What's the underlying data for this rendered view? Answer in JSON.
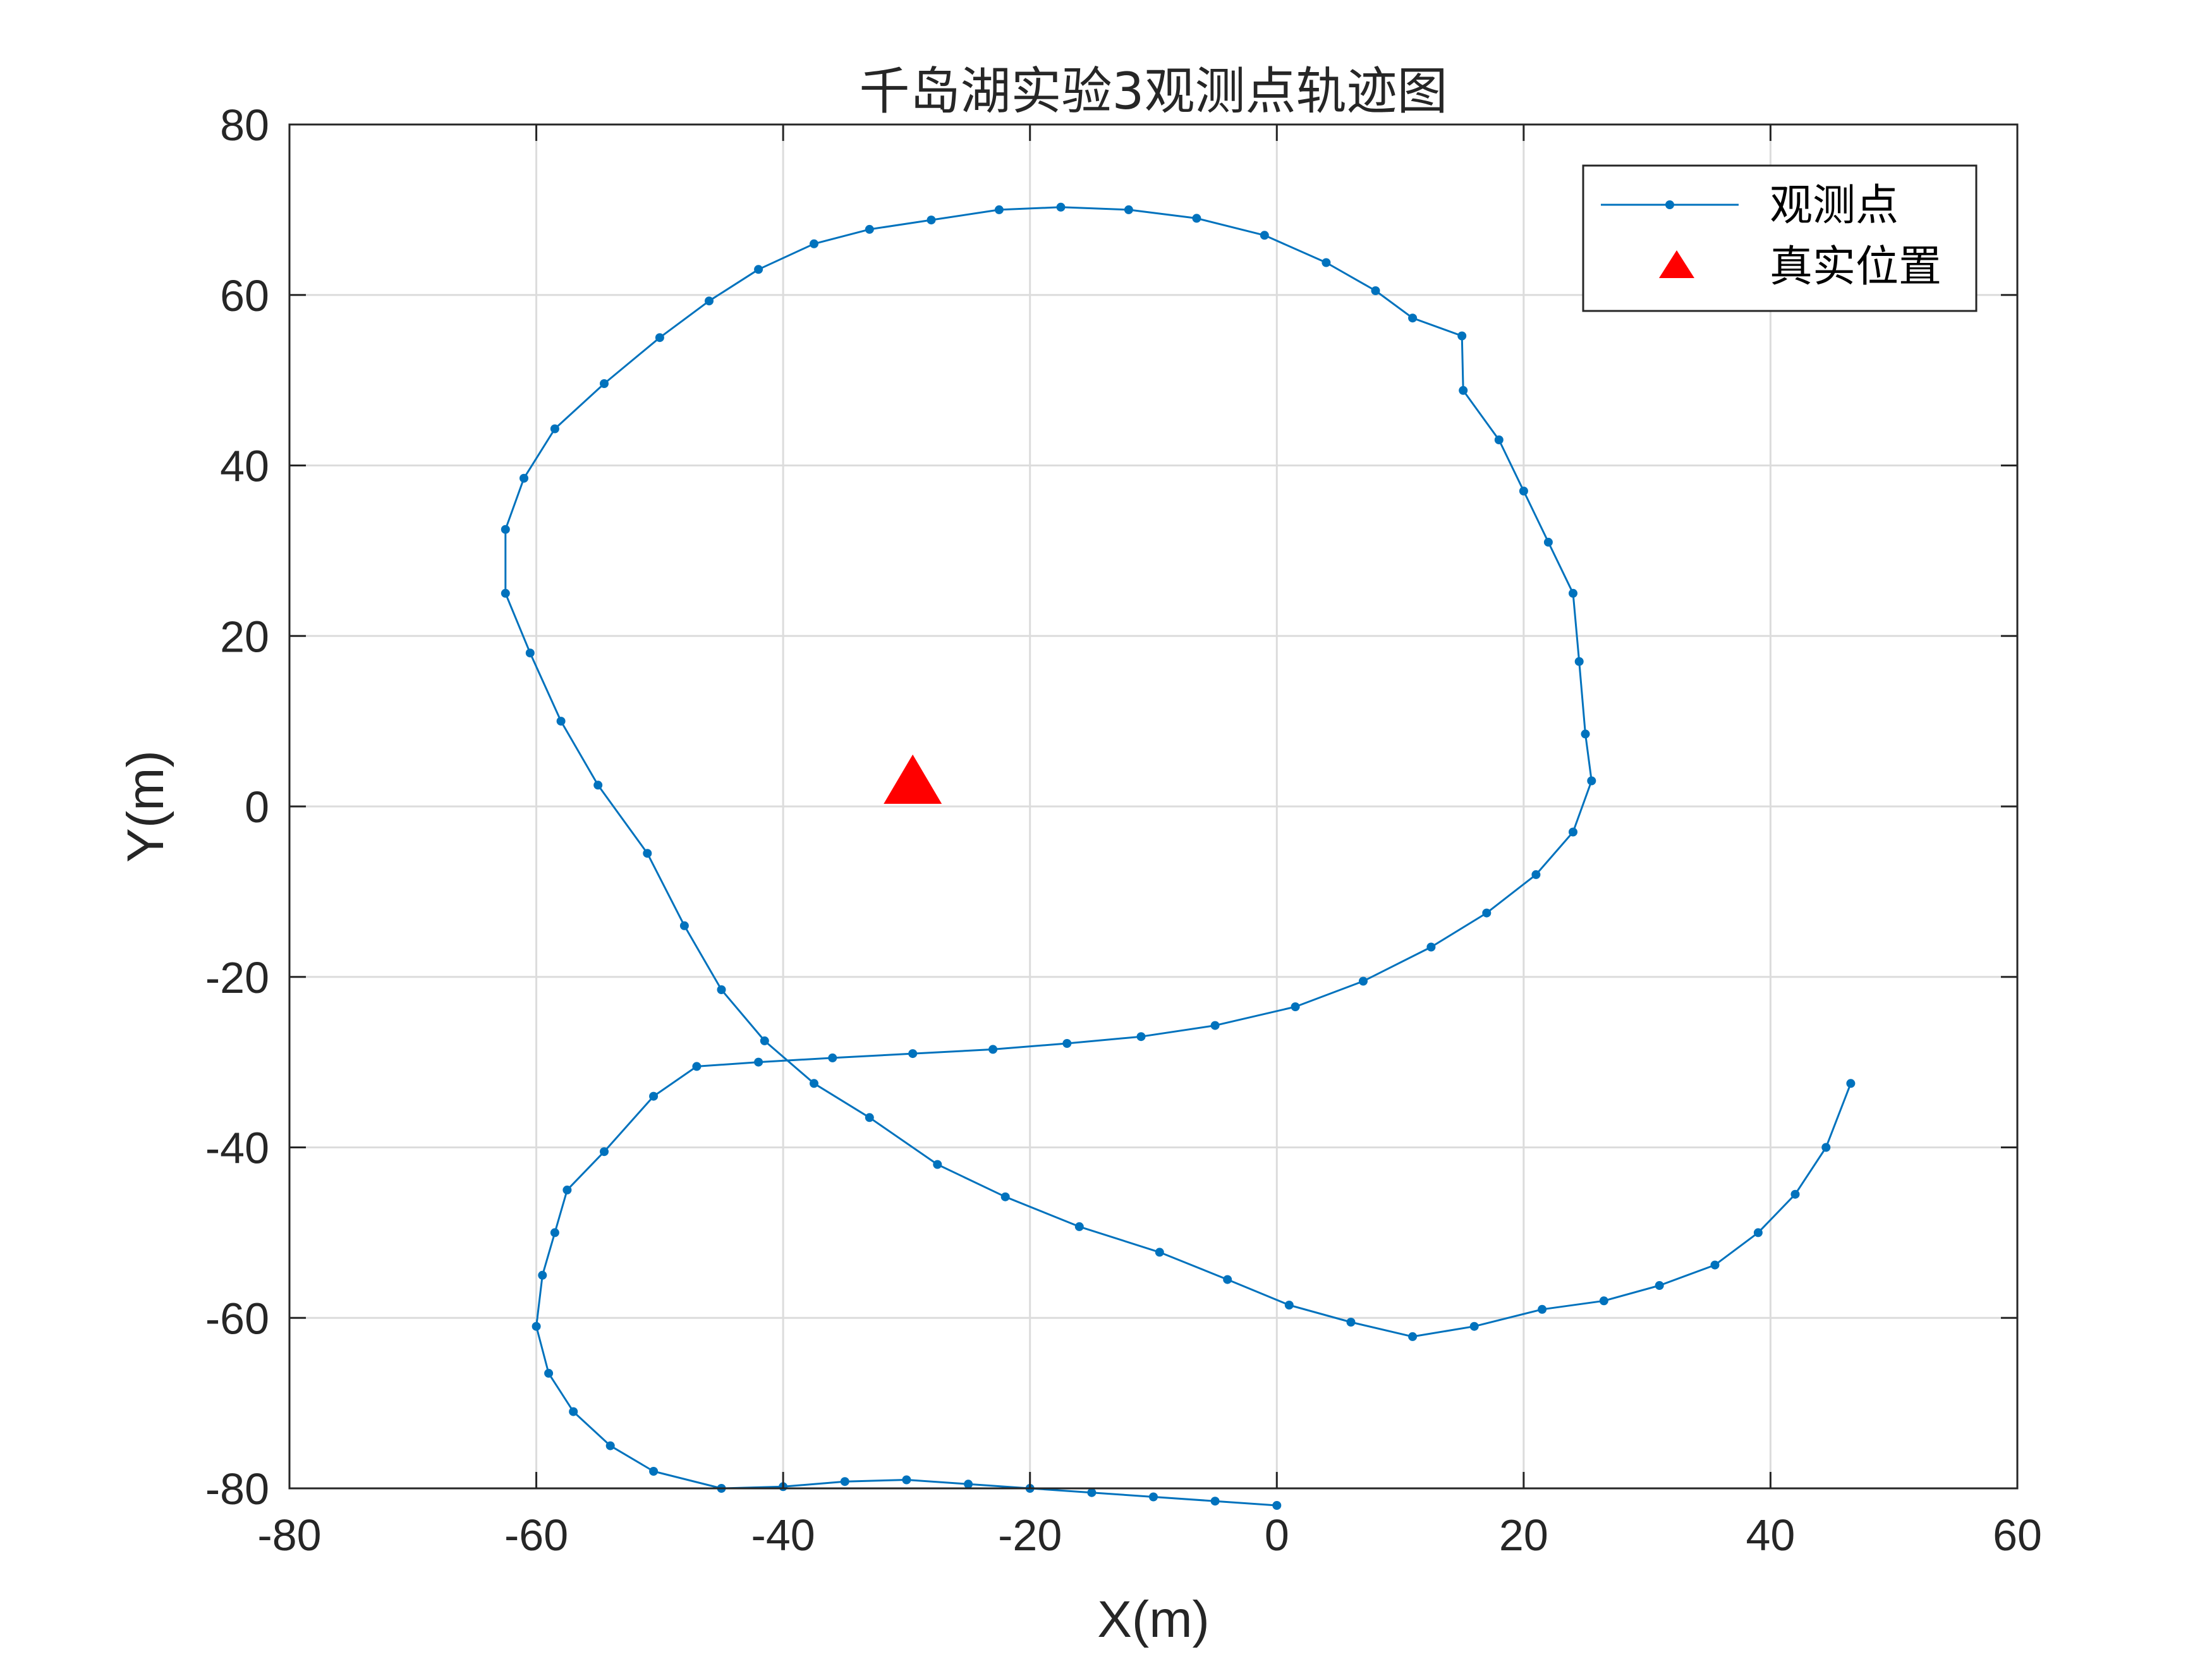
{
  "chart_data": {
    "type": "line",
    "title": "千岛湖实验3观测点轨迹图",
    "xlabel": "X(m)",
    "ylabel": "Y(m)",
    "xlim": [
      -80,
      60
    ],
    "ylim": [
      -80,
      80
    ],
    "xticks": [
      -80,
      -60,
      -40,
      -20,
      0,
      20,
      40,
      60
    ],
    "yticks": [
      -80,
      -60,
      -40,
      -20,
      0,
      20,
      40,
      60,
      80
    ],
    "xtick_labels": [
      "-80",
      "-60",
      "-40",
      "-20",
      "0",
      "20",
      "40",
      "60"
    ],
    "ytick_labels": [
      "-80",
      "-60",
      "-40",
      "-20",
      "0",
      "20",
      "40",
      "60",
      "80"
    ],
    "grid": true,
    "legend_position": "top-right",
    "colors": {
      "series": "#0072BD",
      "marker": "#FF0000",
      "grid": "#dcdcdc",
      "axis": "#262626"
    },
    "series": [
      {
        "name": "观测点",
        "style": "line-with-dots",
        "points": [
          [
            46.5,
            -32.5
          ],
          [
            44.5,
            -40
          ],
          [
            42,
            -45.5
          ],
          [
            39,
            -50
          ],
          [
            35.5,
            -53.8
          ],
          [
            31,
            -56.2
          ],
          [
            26.5,
            -58
          ],
          [
            21.5,
            -59
          ],
          [
            16,
            -61
          ],
          [
            11,
            -62.2
          ],
          [
            6,
            -60.5
          ],
          [
            1,
            -58.5
          ],
          [
            -4,
            -55.5
          ],
          [
            -9.5,
            -52.3
          ],
          [
            -16,
            -49.3
          ],
          [
            -22,
            -45.8
          ],
          [
            -27.5,
            -42
          ],
          [
            -33,
            -36.5
          ],
          [
            -37.5,
            -32.5
          ],
          [
            -41.5,
            -27.5
          ],
          [
            -45,
            -21.5
          ],
          [
            -48,
            -14
          ],
          [
            -51,
            -5.5
          ],
          [
            -55,
            2.5
          ],
          [
            -58,
            10
          ],
          [
            -60.5,
            18
          ],
          [
            -62.5,
            25
          ],
          [
            -62.5,
            32.5
          ],
          [
            -61,
            38.5
          ],
          [
            -58.5,
            44.3
          ],
          [
            -54.5,
            49.6
          ],
          [
            -50,
            55
          ],
          [
            -46,
            59.3
          ],
          [
            -42,
            63
          ],
          [
            -37.5,
            66
          ],
          [
            -33,
            67.7
          ],
          [
            -28,
            68.8
          ],
          [
            -22.5,
            70
          ],
          [
            -17.5,
            70.3
          ],
          [
            -12,
            70
          ],
          [
            -6.5,
            69
          ],
          [
            -1,
            67
          ],
          [
            4,
            63.8
          ],
          [
            8,
            60.5
          ],
          [
            11,
            57.3
          ],
          [
            15,
            55.2
          ],
          [
            15.1,
            48.8
          ],
          [
            18,
            43
          ],
          [
            20,
            37
          ],
          [
            22,
            31
          ],
          [
            24,
            25
          ],
          [
            24.5,
            17
          ],
          [
            25,
            8.5
          ],
          [
            25.5,
            3
          ],
          [
            24,
            -3
          ],
          [
            21,
            -8
          ],
          [
            17,
            -12.5
          ],
          [
            12.5,
            -16.5
          ],
          [
            7,
            -20.5
          ],
          [
            1.5,
            -23.5
          ],
          [
            -5,
            -25.7
          ],
          [
            -11,
            -27
          ],
          [
            -17,
            -27.8
          ],
          [
            -23,
            -28.5
          ],
          [
            -29.5,
            -29
          ],
          [
            -36,
            -29.5
          ],
          [
            -42,
            -30
          ],
          [
            -47,
            -30.5
          ],
          [
            -50.5,
            -34
          ],
          [
            -54.5,
            -40.5
          ],
          [
            -57.5,
            -45
          ],
          [
            -58.5,
            -50
          ],
          [
            -59.5,
            -55
          ],
          [
            -60,
            -61
          ],
          [
            -59,
            -66.5
          ],
          [
            -57,
            -71
          ],
          [
            -54,
            -75
          ],
          [
            -50.5,
            -78
          ],
          [
            -45,
            -80
          ],
          [
            -40,
            -79.8
          ],
          [
            -35,
            -79.2
          ],
          [
            -30,
            -79
          ],
          [
            -25,
            -79.5
          ],
          [
            -20,
            -80
          ],
          [
            -15,
            -80.5
          ],
          [
            -10,
            -81
          ],
          [
            -5,
            -81.5
          ],
          [
            0,
            -82
          ]
        ]
      },
      {
        "name": "真实位置",
        "style": "triangle-marker",
        "points": [
          [
            -29.5,
            2.5
          ]
        ]
      }
    ]
  }
}
